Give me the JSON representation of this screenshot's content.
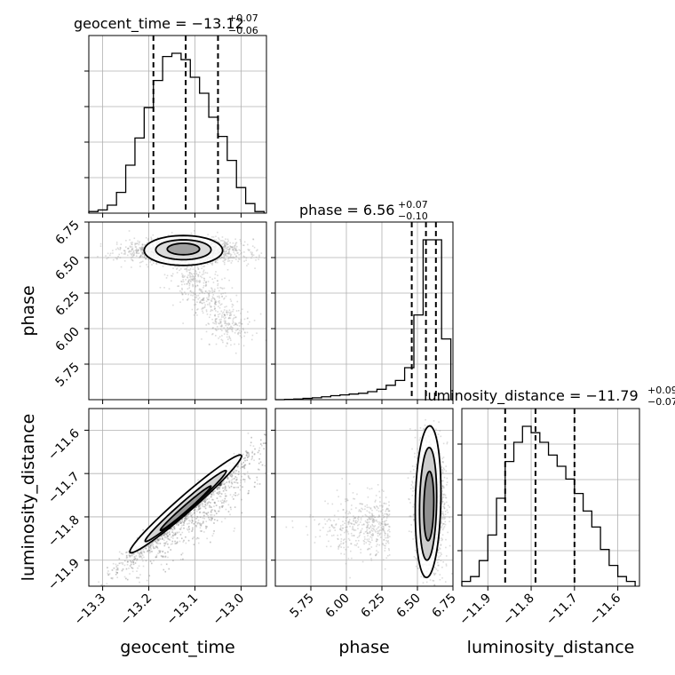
{
  "chart_data": {
    "type": "corner",
    "parameters": [
      "geocent_time",
      "phase",
      "luminosity_distance"
    ],
    "titles": [
      {
        "param": "geocent_time",
        "label": "geocent_time = −13.12",
        "sup": "+0.07",
        "sub": "−0.06"
      },
      {
        "param": "phase",
        "label": "phase = 6.56",
        "sup": "+0.07",
        "sub": "−0.10"
      },
      {
        "param": "luminosity_distance",
        "label": "luminosity_distance = −11.79",
        "sup": "+0.09",
        "sub": "−0.07"
      }
    ],
    "axis_labels": {
      "x": [
        "geocent_time",
        "phase",
        "luminosity_distance"
      ],
      "y": [
        "phase",
        "luminosity_distance"
      ]
    },
    "ranges": {
      "geocent_time": [
        -13.33,
        -12.945
      ],
      "phase": [
        5.5,
        6.75
      ],
      "luminosity_distance": [
        -11.96,
        -11.55
      ]
    },
    "ticks": {
      "geocent_time": {
        "values": [
          -13.3,
          -13.2,
          -13.1,
          -13.0
        ],
        "labels": [
          "−13.3",
          "−13.2",
          "−13.1",
          "−13.0"
        ]
      },
      "phase_x": {
        "values": [
          5.75,
          6.0,
          6.25,
          6.5,
          6.75
        ],
        "labels": [
          "5.75",
          "6.00",
          "6.25",
          "6.50",
          "6.75"
        ]
      },
      "phase_y": {
        "values": [
          5.75,
          6.0,
          6.25,
          6.5,
          6.75
        ],
        "labels": [
          "5.75",
          "6.00",
          "6.25",
          "6.50",
          "6.75"
        ]
      },
      "luminosity_distance_x": {
        "values": [
          -11.9,
          -11.8,
          -11.7,
          -11.6
        ],
        "labels": [
          "−11.9",
          "−11.8",
          "−11.7",
          "−11.6"
        ]
      },
      "luminosity_distance_y": {
        "values": [
          -11.6,
          -11.7,
          -11.8,
          -11.9
        ],
        "labels": [
          "−11.6",
          "−11.7",
          "−11.8",
          "−11.9"
        ]
      }
    },
    "histograms": {
      "geocent_time": {
        "bin_edges": [
          -13.33,
          -13.31,
          -13.29,
          -13.27,
          -13.25,
          -13.23,
          -13.21,
          -13.19,
          -13.17,
          -13.15,
          -13.13,
          -13.11,
          -13.09,
          -13.07,
          -13.05,
          -13.03,
          -13.01,
          -12.99,
          -12.97,
          -12.95
        ],
        "counts": [
          0.01,
          0.02,
          0.05,
          0.13,
          0.3,
          0.47,
          0.66,
          0.83,
          0.98,
          1.0,
          0.96,
          0.85,
          0.75,
          0.6,
          0.48,
          0.33,
          0.16,
          0.06,
          0.01
        ],
        "quantiles": [
          -13.19,
          -13.12,
          -13.05
        ]
      },
      "phase": {
        "bin_edges": [
          5.5,
          5.565,
          5.63,
          5.695,
          5.76,
          5.825,
          5.89,
          5.955,
          6.02,
          6.085,
          6.15,
          6.215,
          6.28,
          6.345,
          6.41,
          6.475,
          6.54,
          6.605,
          6.67,
          6.735
        ],
        "counts": [
          0.0,
          0.002,
          0.004,
          0.008,
          0.012,
          0.018,
          0.025,
          0.03,
          0.035,
          0.04,
          0.05,
          0.065,
          0.09,
          0.12,
          0.2,
          0.53,
          1.0,
          1.0,
          0.38
        ],
        "quantiles": [
          6.46,
          6.56,
          6.63
        ]
      },
      "luminosity_distance": {
        "bin_edges": [
          -11.96,
          -11.94,
          -11.92,
          -11.9,
          -11.88,
          -11.86,
          -11.84,
          -11.82,
          -11.8,
          -11.78,
          -11.76,
          -11.74,
          -11.72,
          -11.7,
          -11.68,
          -11.66,
          -11.64,
          -11.62,
          -11.6,
          -11.58,
          -11.56
        ],
        "counts": [
          0.03,
          0.06,
          0.16,
          0.32,
          0.55,
          0.78,
          0.9,
          1.0,
          0.96,
          0.9,
          0.82,
          0.75,
          0.67,
          0.58,
          0.47,
          0.37,
          0.23,
          0.13,
          0.06,
          0.03
        ],
        "quantiles": [
          -11.86,
          -11.79,
          -11.7
        ]
      }
    },
    "two_d_modes": [
      {
        "x": "geocent_time",
        "y": "phase",
        "center": [
          -13.125,
          6.55
        ],
        "correlation": 0.0
      },
      {
        "x": "geocent_time",
        "y": "luminosity_distance",
        "center": [
          -13.12,
          -11.78
        ],
        "correlation": 0.97
      },
      {
        "x": "phase",
        "y": "luminosity_distance",
        "center": [
          6.57,
          -11.78
        ],
        "correlation": 0.2
      }
    ],
    "grid": true,
    "colors": {
      "line": "#000000",
      "grid": "#b0b0b0",
      "samples": "#9a9a9a"
    }
  }
}
